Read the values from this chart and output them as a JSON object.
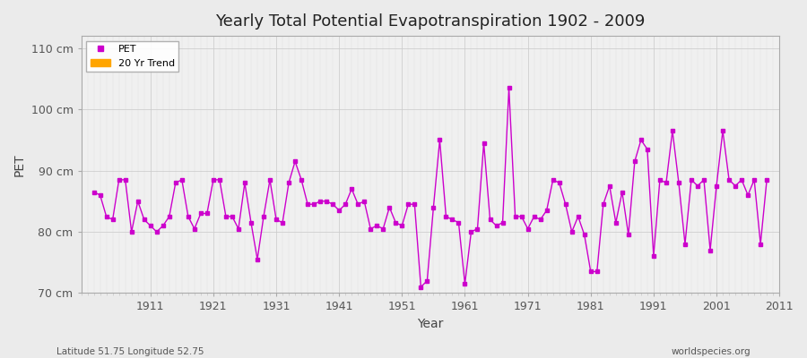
{
  "title": "Yearly Total Potential Evapotranspiration 1902 - 2009",
  "xlabel": "Year",
  "ylabel": "PET",
  "subtitle_left": "Latitude 51.75 Longitude 52.75",
  "subtitle_right": "worldspecies.org",
  "background_color": "#ebebeb",
  "plot_background_color": "#f0f0f0",
  "line_color": "#cc00cc",
  "trend_color": "#ffa500",
  "ylim": [
    70,
    112
  ],
  "yticks": [
    70,
    80,
    90,
    100,
    110
  ],
  "ytick_labels": [
    "70 cm",
    "80 cm",
    "90 cm",
    "100 cm",
    "110 cm"
  ],
  "years": [
    1902,
    1903,
    1904,
    1905,
    1906,
    1907,
    1908,
    1909,
    1910,
    1911,
    1912,
    1913,
    1914,
    1915,
    1916,
    1917,
    1918,
    1919,
    1920,
    1921,
    1922,
    1923,
    1924,
    1925,
    1926,
    1927,
    1928,
    1929,
    1930,
    1931,
    1932,
    1933,
    1934,
    1935,
    1936,
    1937,
    1938,
    1939,
    1940,
    1941,
    1942,
    1943,
    1944,
    1945,
    1946,
    1947,
    1948,
    1949,
    1950,
    1951,
    1952,
    1953,
    1954,
    1955,
    1956,
    1957,
    1958,
    1959,
    1960,
    1961,
    1962,
    1963,
    1964,
    1965,
    1966,
    1967,
    1968,
    1969,
    1970,
    1971,
    1972,
    1973,
    1974,
    1975,
    1976,
    1977,
    1978,
    1979,
    1980,
    1981,
    1982,
    1983,
    1984,
    1985,
    1986,
    1987,
    1988,
    1989,
    1990,
    1991,
    1992,
    1993,
    1994,
    1995,
    1996,
    1997,
    1998,
    1999,
    2000,
    2001,
    2002,
    2003,
    2004,
    2005,
    2006,
    2007,
    2008,
    2009
  ],
  "values": [
    86.5,
    86.0,
    82.5,
    82.0,
    88.5,
    88.5,
    80.0,
    85.0,
    82.0,
    81.0,
    80.0,
    81.0,
    82.5,
    88.0,
    88.5,
    82.5,
    80.5,
    83.0,
    83.0,
    88.5,
    88.5,
    82.5,
    82.5,
    80.5,
    88.0,
    81.5,
    75.5,
    82.5,
    88.5,
    82.0,
    81.5,
    88.0,
    91.5,
    88.5,
    84.5,
    84.5,
    85.0,
    85.0,
    84.5,
    83.5,
    84.5,
    87.0,
    84.5,
    85.0,
    80.5,
    81.0,
    80.5,
    84.0,
    81.5,
    81.0,
    84.5,
    84.5,
    71.0,
    72.0,
    84.0,
    95.0,
    82.5,
    82.0,
    81.5,
    71.5,
    80.0,
    80.5,
    94.5,
    82.0,
    81.0,
    81.5,
    103.5,
    82.5,
    82.5,
    80.5,
    82.5,
    82.0,
    83.5,
    88.5,
    88.0,
    84.5,
    80.0,
    82.5,
    79.5,
    73.5,
    73.5,
    84.5,
    87.5,
    81.5,
    86.5,
    79.5,
    91.5,
    95.0,
    93.5,
    76.0,
    88.5,
    88.0,
    96.5,
    88.0,
    78.0,
    88.5,
    87.5,
    88.5,
    77.0,
    87.5,
    96.5,
    88.5,
    87.5,
    88.5,
    86.0,
    88.5,
    78.0,
    88.5
  ]
}
